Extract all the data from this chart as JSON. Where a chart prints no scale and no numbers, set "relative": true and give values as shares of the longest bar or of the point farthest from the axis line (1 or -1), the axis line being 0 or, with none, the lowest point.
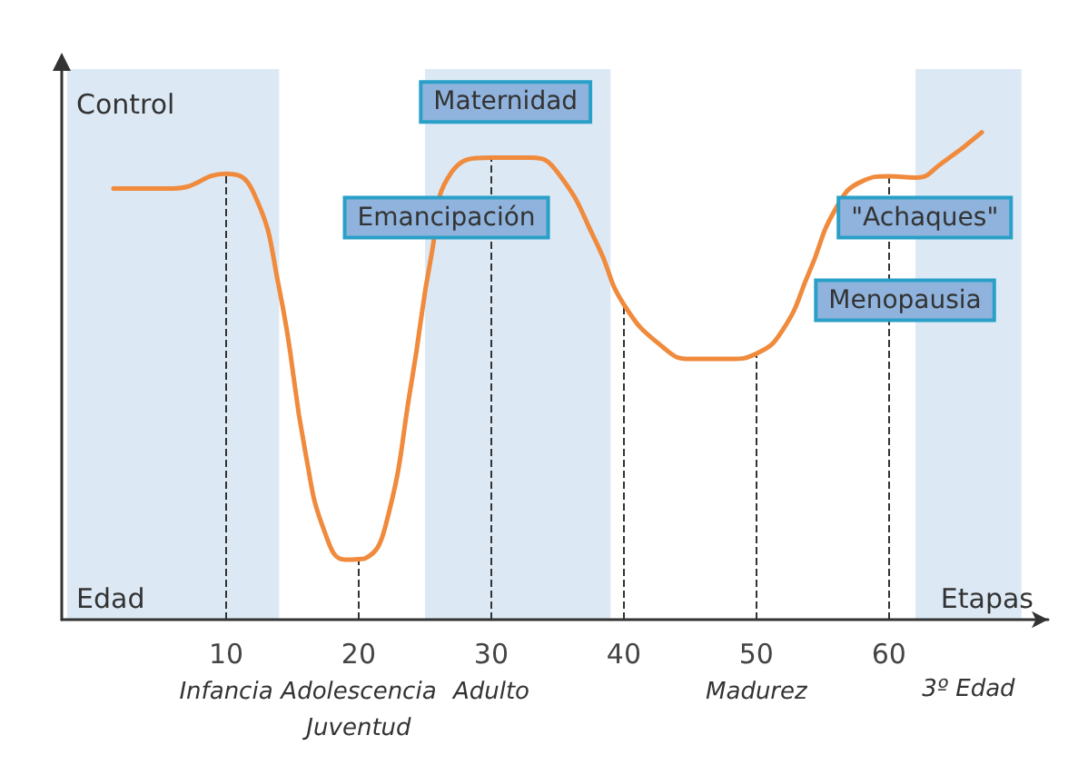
{
  "chart_data": {
    "type": "line",
    "relative": true,
    "xlabel": "Etapas",
    "ylabel": "Control",
    "x": [
      1.5,
      6,
      10,
      12,
      14,
      16,
      17.5,
      19,
      20,
      20.5,
      22,
      24,
      25.5,
      27,
      30,
      33,
      35,
      38,
      40,
      43,
      45,
      48,
      50,
      52,
      54,
      56,
      58,
      60,
      62,
      64,
      67
    ],
    "series": [
      {
        "color": "#f08a3c",
        "values": [
          0.885,
          0.885,
          0.915,
          0.88,
          0.68,
          0.34,
          0.175,
          0.123,
          0.124,
          0.126,
          0.19,
          0.49,
          0.75,
          0.918,
          0.948,
          0.948,
          0.918,
          0.77,
          0.647,
          0.558,
          0.535,
          0.535,
          0.546,
          0.595,
          0.714,
          0.844,
          0.9,
          0.91,
          0.907,
          0.937,
          1
        ]
      }
    ],
    "xlim": [
      -2.4,
      72
    ],
    "xticks": [
      {
        "value": 10,
        "label": "10\nInfancia"
      },
      {
        "value": 20,
        "label": "20\nAdolescencia\nJuventud"
      },
      {
        "value": 30,
        "label": "30\nAdulto"
      },
      40,
      {
        "value": 50,
        "label": "50\nMadurez"
      },
      60
    ],
    "bands": [
      {
        "axis": "x",
        "from": -2,
        "to": 14,
        "color": "#dce9f5"
      },
      {
        "axis": "x",
        "from": 25,
        "to": 39,
        "color": "#dce9f5"
      },
      {
        "axis": "x",
        "from": 62,
        "to": 70,
        "color": "#dce9f5",
        "label": "3º Edad"
      }
    ],
    "ref_lines": [
      {
        "axis": "x",
        "value": 10,
        "line_style": "dashed"
      },
      {
        "axis": "x",
        "value": 20,
        "line_style": "dashed"
      },
      {
        "axis": "x",
        "value": 30,
        "line_style": "dashed"
      },
      {
        "axis": "x",
        "value": 40,
        "line_style": "dashed"
      },
      {
        "axis": "x",
        "value": 50,
        "line_style": "dashed"
      },
      {
        "axis": "x",
        "value": 60,
        "line_style": "dashed"
      }
    ],
    "annotations": [
      "Edad",
      "Maternidad",
      "Emancipación",
      "\"Achaques\"",
      "Menopausia"
    ],
    "grid": false,
    "marker": "none",
    "line_style": "solid"
  }
}
